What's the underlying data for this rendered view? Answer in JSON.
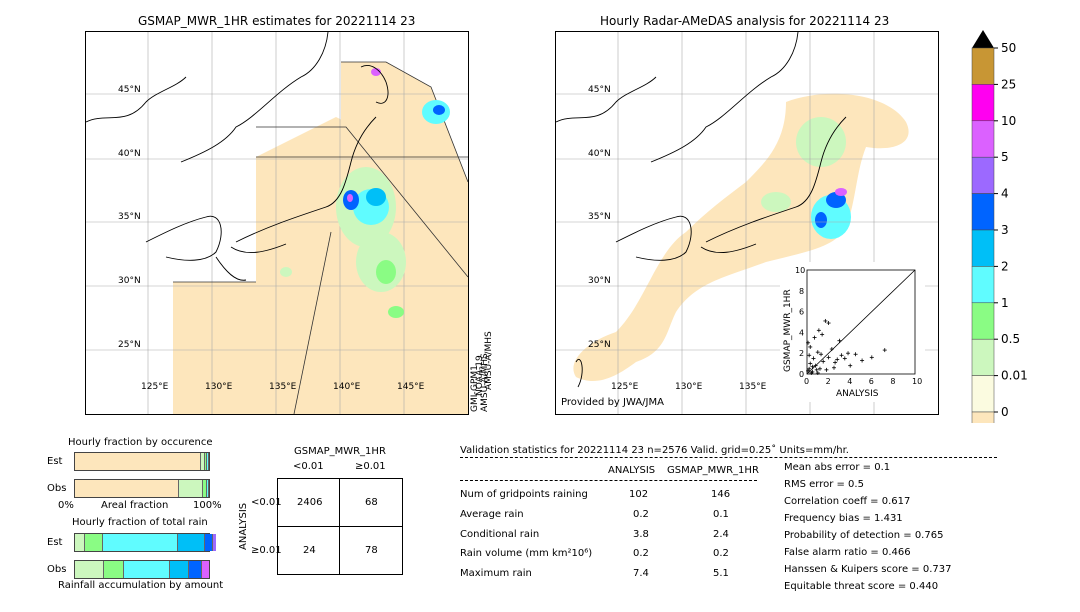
{
  "left_map": {
    "title": "GSMAP_MWR_1HR estimates for 20221114 23",
    "side_text": [
      "GMI-GPM1",
      "AMSU-A/MHS",
      "NOAA-19",
      "AMSU-A/MHS"
    ],
    "lat_labels": [
      "45°N",
      "40°N",
      "35°N",
      "30°N",
      "25°N"
    ],
    "lon_labels": [
      "125°E",
      "130°E",
      "135°E",
      "140°E",
      "145°E"
    ]
  },
  "right_map": {
    "title": "Hourly Radar-AMeDAS analysis for 20221114 23",
    "credit": "Provided by JWA/JMA",
    "lat_labels": [
      "45°N",
      "40°N",
      "35°N",
      "30°N",
      "25°N"
    ],
    "lon_labels": [
      "125°E",
      "130°E",
      "135°E"
    ]
  },
  "colorbar": {
    "ticks": [
      "50",
      "25",
      "10",
      "5",
      "4",
      "3",
      "2",
      "1",
      "0.5",
      "0.01",
      "0"
    ],
    "colors": [
      "#c89634",
      "#ff00f0",
      "#db61ff",
      "#9c69ff",
      "#0064ff",
      "#00bff7",
      "#60fcff",
      "#8afc84",
      "#ccf7be",
      "#fbfbe0",
      "#fde6bc"
    ],
    "extend_color": "#000000"
  },
  "scatter": {
    "xlabel": "ANALYSIS",
    "ylabel": "GSMAP_MWR_1HR",
    "ticks": [
      "0",
      "2",
      "4",
      "6",
      "8",
      "10"
    ],
    "points": [
      [
        0.1,
        0.3
      ],
      [
        0.2,
        0.5
      ],
      [
        0.3,
        1.0
      ],
      [
        0.5,
        0.2
      ],
      [
        0.6,
        1.5
      ],
      [
        0.8,
        0.8
      ],
      [
        1.0,
        2.1
      ],
      [
        1.2,
        0.5
      ],
      [
        0.4,
        0.1
      ],
      [
        1.5,
        1.2
      ],
      [
        1.8,
        0.4
      ],
      [
        2.0,
        1.6
      ],
      [
        2.3,
        2.4
      ],
      [
        2.6,
        1.1
      ],
      [
        3.0,
        3.2
      ],
      [
        3.2,
        1.8
      ],
      [
        3.5,
        1.5
      ],
      [
        3.8,
        2.0
      ],
      [
        4.0,
        0.8
      ],
      [
        4.5,
        1.9
      ],
      [
        5.1,
        1.3
      ],
      [
        6.0,
        1.6
      ],
      [
        7.2,
        2.3
      ],
      [
        0.2,
        1.8
      ],
      [
        0.1,
        3.0
      ],
      [
        0.3,
        2.6
      ],
      [
        0.7,
        3.5
      ],
      [
        1.1,
        4.2
      ],
      [
        1.4,
        3.8
      ],
      [
        2.0,
        4.9
      ],
      [
        1.7,
        5.1
      ],
      [
        1.0,
        0.1
      ],
      [
        0.9,
        0.4
      ],
      [
        0.5,
        0.7
      ],
      [
        1.3,
        1.9
      ],
      [
        2.5,
        0.6
      ],
      [
        2.8,
        1.4
      ]
    ]
  },
  "occurrence": {
    "title": "Hourly fraction by occurence",
    "rows": [
      "Est",
      "Obs"
    ],
    "xlabel": "Areal fraction",
    "x_left": "0%",
    "x_right": "100%",
    "est": [
      0.93,
      0.03,
      0.02,
      0.01,
      0.01
    ],
    "obs": [
      0.77,
      0.18,
      0.03,
      0.01,
      0.01
    ],
    "colors": [
      "#fde6bc",
      "#ccf7be",
      "#8afc84",
      "#60fcff",
      "#00bff7"
    ]
  },
  "total_rain": {
    "title": "Hourly fraction of total rain",
    "rows": [
      "Est",
      "Obs"
    ],
    "xlabel": "Rainfall accumulation by amount",
    "est": [
      0.07,
      0.13,
      0.56,
      0.2,
      0.06,
      0.03
    ],
    "obs": [
      0.21,
      0.15,
      0.34,
      0.14,
      0.1,
      0.06
    ],
    "colors_est": [
      "#ccf7be",
      "#8afc84",
      "#60fcff",
      "#00bff7",
      "#0064ff",
      "#9c69ff"
    ],
    "colors_obs": [
      "#ccf7be",
      "#8afc84",
      "#60fcff",
      "#00bff7",
      "#0064ff",
      "#db61ff"
    ]
  },
  "contingency": {
    "col_title": "GSMAP_MWR_1HR",
    "col_labels": [
      "<0.01",
      "≥0.01"
    ],
    "row_title": "ANALYSIS",
    "row_labels": [
      "<0.01",
      "≥0.01"
    ],
    "cells": [
      "2406",
      "68",
      "24",
      "78"
    ]
  },
  "validation": {
    "header": "Validation statistics for 20221114 23  n=2576 Valid. grid=0.25˚ Units=mm/hr.",
    "col_analysis": "ANALYSIS",
    "col_gsmap": "GSMAP_MWR_1HR",
    "rows": [
      {
        "label": "Num of gridpoints raining",
        "a": "102",
        "g": "146"
      },
      {
        "label": "Average rain",
        "a": "0.2",
        "g": "0.1"
      },
      {
        "label": "Conditional rain",
        "a": "3.8",
        "g": "2.4"
      },
      {
        "label": "Rain volume (mm km²10⁶)",
        "a": "0.2",
        "g": "0.2"
      },
      {
        "label": "Maximum rain",
        "a": "7.4",
        "g": "5.1"
      }
    ],
    "scores": [
      "Mean abs error =    0.1",
      "RMS error =    0.5",
      "Correlation coeff =  0.617",
      "Frequency bias =  1.431",
      "Probability of detection =  0.765",
      "False alarm ratio =  0.466",
      "Hanssen & Kuipers score =  0.737",
      "Equitable threat score =  0.440"
    ]
  }
}
